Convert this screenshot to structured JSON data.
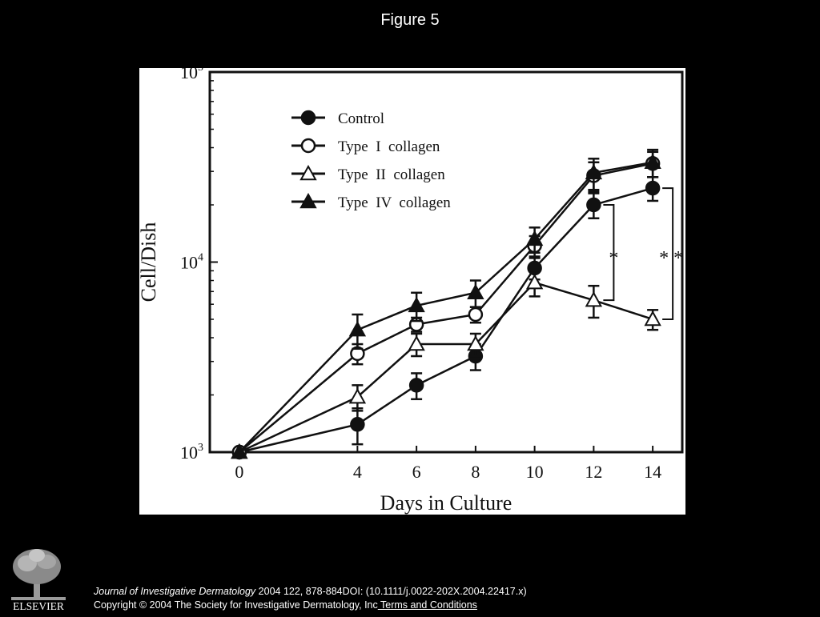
{
  "slide": {
    "title": "Figure 5"
  },
  "chart_data": {
    "type": "line",
    "title": "",
    "xlabel": "Days in Culture",
    "ylabel": "Cell/Dish",
    "yscale": "log",
    "ylim": [
      1000,
      100000
    ],
    "xlim": [
      -1,
      15
    ],
    "x": [
      0,
      4,
      6,
      8,
      10,
      12,
      14
    ],
    "x_ticks": [
      "0",
      "4",
      "6",
      "8",
      "10",
      "12",
      "14"
    ],
    "y_ticks": [
      {
        "value": 1000,
        "base": "10",
        "exp": "3"
      },
      {
        "value": 10000,
        "base": "10",
        "exp": "4"
      },
      {
        "value": 100000,
        "base": "10",
        "exp": "5"
      }
    ],
    "grid": false,
    "legend_position": "top-left",
    "series": [
      {
        "name": "Control",
        "marker": "filled-circle",
        "values": [
          1000,
          1400,
          2250,
          3200,
          9300,
          20000,
          24500
        ],
        "errors": [
          0,
          300,
          350,
          500,
          1200,
          3000,
          3500
        ]
      },
      {
        "name": "Type  I  collagen",
        "marker": "open-circle",
        "values": [
          1000,
          3300,
          4700,
          5300,
          12200,
          28500,
          33000
        ],
        "errors": [
          0,
          400,
          400,
          500,
          1500,
          5000,
          5000
        ]
      },
      {
        "name": "Type  II  collagen",
        "marker": "open-triangle",
        "values": [
          1000,
          1950,
          3700,
          3700,
          7800,
          6300,
          5000
        ],
        "errors": [
          0,
          300,
          500,
          500,
          1200,
          1200,
          600
        ]
      },
      {
        "name": "Type  IV  collagen",
        "marker": "filled-triangle",
        "values": [
          1000,
          4400,
          5900,
          6900,
          13200,
          29500,
          33500
        ],
        "errors": [
          0,
          900,
          1000,
          1100,
          2000,
          5500,
          5500
        ]
      }
    ],
    "annotations": [
      "*",
      "* *"
    ]
  },
  "footer": {
    "journal": "Journal of Investigative Dermatology",
    "citation": " 2004 122, 878-884DOI: (10.1111/j.0022-202X.2004.22417.x)",
    "copyright": "Copyright © 2004 The Society for Investigative Dermatology, Inc",
    "terms_link": " Terms and Conditions"
  },
  "logo": {
    "text": "ELSEVIER",
    "icon": "elsevier-tree-logo"
  }
}
